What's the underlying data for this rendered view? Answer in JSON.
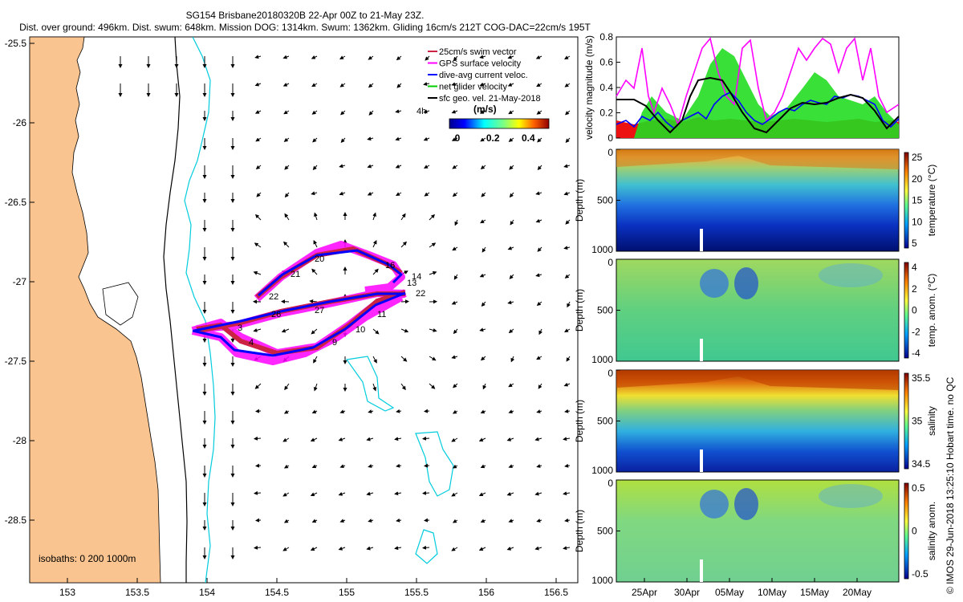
{
  "header": {
    "line1": "SG154 Brisbane20180320B 22-Apr 00Z to 21-May 23Z.",
    "line2": "Dist. over ground: 496km. Dist. swum: 648km. Mission DOG: 1314km. Swum: 1362km. Gliding 16cm/s 212T COG-DAC=22cm/s 195T"
  },
  "map": {
    "lat_ticks": [
      "-25.5",
      "-26",
      "-26.5",
      "-27",
      "-27.5",
      "-28",
      "-28.5"
    ],
    "lon_ticks": [
      "153",
      "153.5",
      "154",
      "154.5",
      "155",
      "155.5",
      "156",
      "156.5"
    ],
    "legend": [
      {
        "label": "25cm/s swim vector",
        "color": "#cc2244"
      },
      {
        "label": "GPS surface velocity",
        "color": "#ff00ff"
      },
      {
        "label": "dive-avg current veloc.",
        "color": "#0000ff"
      },
      {
        "label": "net glider velocity",
        "color": "#00cc00"
      },
      {
        "label": "sfc geo. vel. 21-May-2018",
        "color": "#000000"
      }
    ],
    "four_h_label": "4h",
    "colorbar_title": "(m/s)",
    "colorbar_ticks": [
      "0",
      "0.2",
      "0.4"
    ],
    "isobaths_label": "isobaths: 0   200   1000m",
    "day_labels": [
      "3",
      "4",
      "9",
      "10",
      "11",
      "13",
      "14",
      "16",
      "20",
      "21",
      "22",
      "22",
      "26",
      "27"
    ],
    "colors": {
      "land": "#f9c48f",
      "glider_track": "#0000ff",
      "gps": "#ff00ff",
      "swim": "#cc2244",
      "isobath": "#00ccdd"
    }
  },
  "velocity_panel": {
    "ylabel": "velocity magnitude (m/s)",
    "yticks": [
      "0",
      "0.2",
      "0.4",
      "0.6",
      "0.8"
    ]
  },
  "sections": [
    {
      "id": "temperature",
      "cbar_label": "temperature (°C)",
      "cbar_ticks": [
        "25",
        "20",
        "15",
        "10",
        "5"
      ],
      "yticks": [
        "0",
        "500",
        "1000"
      ],
      "ylabel": "Depth (m)"
    },
    {
      "id": "temp-anom",
      "cbar_label": "temp. anom. (°C)",
      "cbar_ticks": [
        "4",
        "2",
        "0",
        "-2",
        "-4"
      ],
      "yticks": [
        "0",
        "500",
        "1000"
      ],
      "ylabel": "Depth (m)"
    },
    {
      "id": "salinity",
      "cbar_label": "salinity",
      "cbar_ticks": [
        "35.5",
        "35",
        "34.5"
      ],
      "yticks": [
        "0",
        "500",
        "1000"
      ],
      "ylabel": "Depth (m)"
    },
    {
      "id": "salinity-anom",
      "cbar_label": "salinity anom.",
      "cbar_ticks": [
        "0.5",
        "0",
        "-0.5"
      ],
      "yticks": [
        "0",
        "500",
        "1000"
      ],
      "ylabel": "Depth (m)"
    }
  ],
  "time_ticks": [
    "25Apr",
    "30Apr",
    "05May",
    "10May",
    "15May",
    "20May"
  ],
  "credit": "© IMOS 29-Jun-2018 13:25:10 Hobart time. no QC"
}
